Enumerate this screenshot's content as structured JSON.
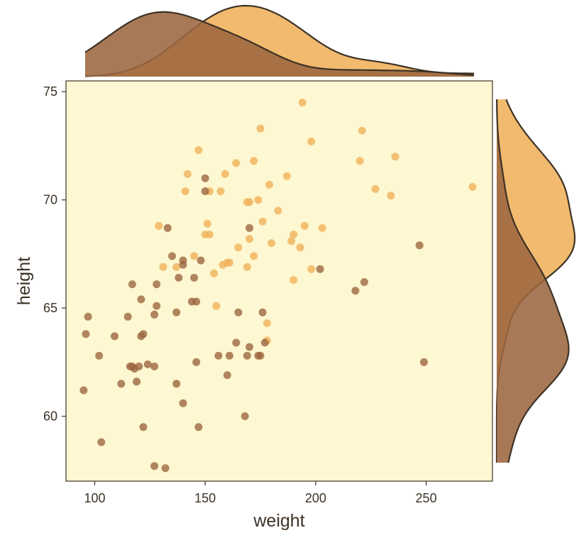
{
  "chart_data": {
    "type": "scatter",
    "title": "",
    "xlabel": "weight",
    "ylabel": "height",
    "xlim": [
      87,
      280
    ],
    "ylim": [
      57.0,
      75.5
    ],
    "xticks": [
      100,
      150,
      200,
      250
    ],
    "yticks": [
      60,
      65,
      70,
      75
    ],
    "grid": false,
    "background_color": "#fdf8d1",
    "frame_color": "#3d3226",
    "marginal_plots": "kde",
    "series": [
      {
        "color": "#f0b15b",
        "x": [
          194,
          198,
          175,
          221,
          236,
          220,
          271,
          227,
          234,
          147,
          164,
          172,
          142,
          159,
          157,
          141,
          152,
          169,
          170,
          179,
          174,
          187,
          183,
          176,
          151,
          150,
          129,
          152,
          189,
          190,
          195,
          203,
          170,
          180,
          165,
          160,
          154,
          145,
          137,
          158,
          131,
          161,
          172,
          169,
          198,
          193,
          190,
          155,
          178,
          178
        ],
        "y": [
          74.5,
          72.7,
          73.3,
          73.2,
          72.0,
          71.8,
          70.6,
          70.5,
          70.2,
          72.3,
          71.7,
          71.8,
          71.2,
          71.2,
          70.4,
          70.4,
          70.4,
          69.9,
          69.9,
          70.7,
          70.0,
          71.1,
          69.5,
          69.0,
          68.9,
          68.4,
          68.8,
          68.4,
          68.1,
          68.4,
          68.8,
          68.7,
          68.2,
          68.0,
          67.8,
          67.1,
          66.6,
          67.4,
          66.9,
          67.0,
          66.9,
          67.1,
          67.4,
          66.9,
          66.8,
          67.8,
          66.3,
          65.1,
          64.3,
          63.5
        ]
      },
      {
        "color": "#9c6740",
        "x": [
          97,
          96,
          95,
          102,
          103,
          109,
          115,
          116,
          117,
          118,
          112,
          117,
          119,
          120,
          121,
          121,
          122,
          122,
          124,
          127,
          127,
          128,
          128,
          132,
          133,
          135,
          137,
          137,
          138,
          140,
          140,
          144,
          145,
          146,
          146,
          147,
          148,
          150,
          150,
          156,
          160,
          161,
          164,
          165,
          168,
          169,
          170,
          170,
          174,
          175,
          176,
          177,
          202,
          218,
          222,
          247,
          249,
          127,
          140
        ],
        "y": [
          64.6,
          63.8,
          61.2,
          62.8,
          58.8,
          63.7,
          64.6,
          62.3,
          66.1,
          62.2,
          61.5,
          62.3,
          61.6,
          62.3,
          65.4,
          63.7,
          59.5,
          63.8,
          62.4,
          62.3,
          64.7,
          65.1,
          66.1,
          57.6,
          68.7,
          67.4,
          64.8,
          61.5,
          66.4,
          60.6,
          67.0,
          65.3,
          66.4,
          65.3,
          62.5,
          59.5,
          67.2,
          71.0,
          70.4,
          62.8,
          61.9,
          62.8,
          63.4,
          64.8,
          60.0,
          62.8,
          63.2,
          68.7,
          62.8,
          62.8,
          64.8,
          63.4,
          66.8,
          65.8,
          66.2,
          67.9,
          62.5,
          57.7,
          67.2
        ]
      }
    ]
  }
}
